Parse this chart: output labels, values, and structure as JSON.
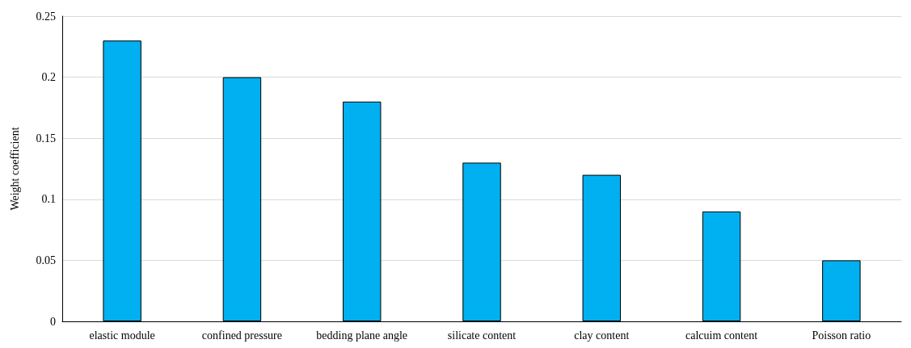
{
  "chart_data": {
    "type": "bar",
    "ylabel": "Weight coefficient",
    "categories": [
      "elastic module",
      "confined pressure",
      "bedding plane angle",
      "silicate content",
      "clay content",
      "calcuim content",
      "Poisson ratio"
    ],
    "values": [
      0.23,
      0.2,
      0.18,
      0.13,
      0.12,
      0.09,
      0.05
    ],
    "color": "#00b0f0",
    "ylim": [
      0,
      0.25
    ],
    "yticks": [
      0,
      0.05,
      0.1,
      0.15,
      0.2,
      0.25
    ],
    "grid": "y"
  }
}
